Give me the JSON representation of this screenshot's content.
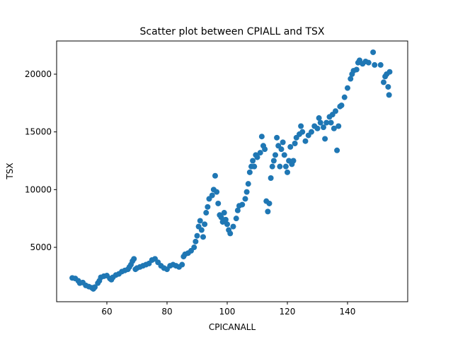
{
  "chart_data": {
    "type": "scatter",
    "title": "Scatter plot between CPIALL and TSX",
    "x_label": "CPICANALL",
    "y_label": "TSX",
    "color": "#1f77b4",
    "grid": false,
    "xlim": [
      43.3,
      160
    ],
    "ylim": [
      288,
      22876
    ],
    "xticks": [
      60,
      80,
      100,
      120,
      140
    ],
    "yticks": [
      5000,
      10000,
      15000,
      20000
    ],
    "x": [
      48.5,
      49.5,
      50.5,
      51,
      52,
      53,
      54,
      55,
      55.5,
      56,
      57,
      57.5,
      58,
      59,
      60,
      61,
      61.5,
      62,
      63,
      64,
      65,
      66,
      67,
      67.5,
      68,
      68.5,
      69,
      69.5,
      70,
      71,
      72,
      73,
      74,
      75,
      76,
      77,
      78,
      79,
      80,
      81,
      82,
      83,
      84,
      85,
      85.5,
      86,
      87,
      88,
      89,
      89.5,
      90,
      90.5,
      91,
      91.5,
      92,
      92.5,
      93,
      93.5,
      94,
      95,
      95.5,
      96,
      96.5,
      97,
      97.5,
      98,
      98.5,
      99,
      99.5,
      100,
      100.5,
      101,
      102,
      103,
      103.5,
      104,
      105,
      106,
      106.5,
      107,
      107.5,
      108,
      108.5,
      109,
      109.5,
      110,
      111,
      111.5,
      112,
      112.5,
      113,
      113.5,
      114,
      114.5,
      115,
      115.5,
      116,
      116.5,
      117,
      117.5,
      118,
      118.5,
      119,
      119.5,
      120,
      120.5,
      121,
      121.5,
      122,
      122.5,
      123,
      124,
      124.5,
      125,
      126,
      127,
      128,
      129,
      130,
      130.5,
      131,
      132,
      132.5,
      133,
      134,
      134.5,
      135,
      135.5,
      136,
      136.5,
      137,
      137.5,
      138,
      139,
      140,
      141,
      141.5,
      142,
      143,
      143.5,
      144,
      145,
      146,
      147,
      148.5,
      149,
      151,
      152,
      152.5,
      153,
      153.5,
      154,
      153.8
    ],
    "values": [
      2350,
      2300,
      2100,
      1900,
      1950,
      1700,
      1600,
      1500,
      1400,
      1550,
      1900,
      2100,
      2400,
      2500,
      2550,
      2300,
      2200,
      2400,
      2600,
      2700,
      2900,
      3000,
      3100,
      3300,
      3500,
      3800,
      4000,
      3100,
      3200,
      3300,
      3400,
      3500,
      3600,
      3900,
      4000,
      3700,
      3400,
      3200,
      3100,
      3400,
      3500,
      3400,
      3300,
      3500,
      4200,
      4400,
      4500,
      4700,
      5000,
      5500,
      6000,
      6800,
      7300,
      6500,
      5900,
      7000,
      8000,
      8500,
      9200,
      9500,
      10000,
      11200,
      9800,
      8800,
      7800,
      7600,
      7200,
      8000,
      7400,
      7000,
      6500,
      6200,
      6800,
      7500,
      8200,
      8600,
      8700,
      9200,
      9800,
      10500,
      11500,
      12000,
      12500,
      12000,
      13000,
      12800,
      13200,
      14600,
      13800,
      13500,
      9000,
      8100,
      8800,
      11000,
      12000,
      12500,
      13000,
      14500,
      13800,
      12000,
      13500,
      14100,
      13000,
      12000,
      11500,
      12500,
      13700,
      12200,
      12500,
      14000,
      14500,
      14800,
      15500,
      15000,
      14200,
      14700,
      15000,
      15500,
      15300,
      16200,
      15800,
      15400,
      14400,
      15800,
      16300,
      15800,
      16500,
      15300,
      16800,
      13400,
      15500,
      17200,
      17300,
      18000,
      18800,
      19600,
      20000,
      20300,
      20400,
      21000,
      21200,
      20900,
      21100,
      21000,
      21900,
      20800,
      20800,
      19300,
      19800,
      20000,
      18900,
      20200,
      18200
    ]
  }
}
